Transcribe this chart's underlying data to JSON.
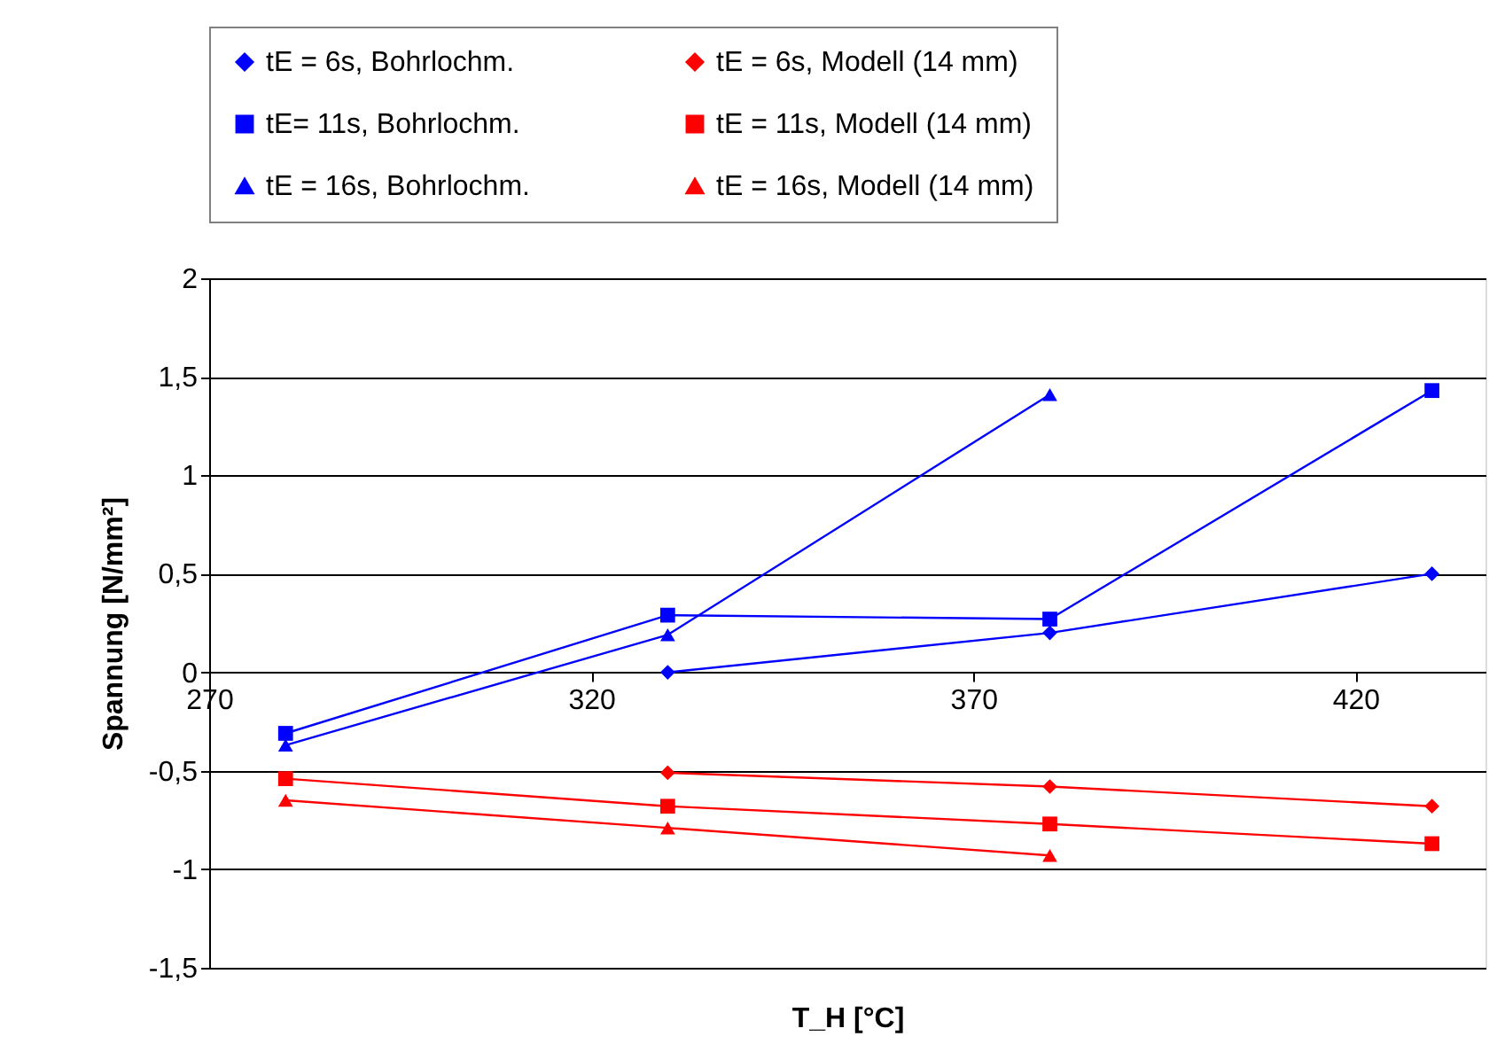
{
  "chart_data": {
    "type": "line",
    "xlabel": "T_H [°C]",
    "ylabel": "Spannung [N/mm²]",
    "xlim": [
      270,
      437
    ],
    "xticks": [
      270,
      320,
      370,
      420
    ],
    "ylim": [
      -1.5,
      2
    ],
    "yticks": [
      {
        "value": -1.5,
        "label": "-1,5"
      },
      -1,
      {
        "value": -0.5,
        "label": "-0,5"
      },
      0,
      {
        "value": 0.5,
        "label": "0,5"
      },
      1,
      {
        "value": 1.5,
        "label": "1,5"
      },
      2
    ],
    "grid": "y",
    "legend": "top",
    "line_style": "solid",
    "series": [
      {
        "name": "tE = 6s, Bohrlochm.",
        "color": "#0000ff",
        "marker": "diamond",
        "x": [
          330,
          380,
          430
        ],
        "values": [
          0.0,
          0.2,
          0.5
        ]
      },
      {
        "name": "tE = 6s, Modell (14 mm)",
        "color": "#ff0000",
        "marker": "diamond",
        "x": [
          330,
          380,
          430
        ],
        "values": [
          -0.51,
          -0.58,
          -0.68
        ]
      },
      {
        "name": "tE= 11s, Bohrlochm.",
        "color": "#0000ff",
        "marker": "square",
        "x": [
          280,
          330,
          380,
          430
        ],
        "values": [
          -0.31,
          0.29,
          0.27,
          1.43
        ]
      },
      {
        "name": "tE = 11s, Modell (14 mm)",
        "color": "#ff0000",
        "marker": "square",
        "x": [
          280,
          330,
          380,
          430
        ],
        "values": [
          -0.54,
          -0.68,
          -0.77,
          -0.87
        ]
      },
      {
        "name": "tE = 16s, Bohrlochm.",
        "color": "#0000ff",
        "marker": "triangle",
        "x": [
          280,
          330,
          380
        ],
        "values": [
          -0.37,
          0.19,
          1.41
        ]
      },
      {
        "name": "tE = 16s, Modell (14 mm)",
        "color": "#ff0000",
        "marker": "triangle",
        "x": [
          280,
          330,
          380
        ],
        "values": [
          -0.65,
          -0.79,
          -0.93
        ]
      }
    ]
  }
}
